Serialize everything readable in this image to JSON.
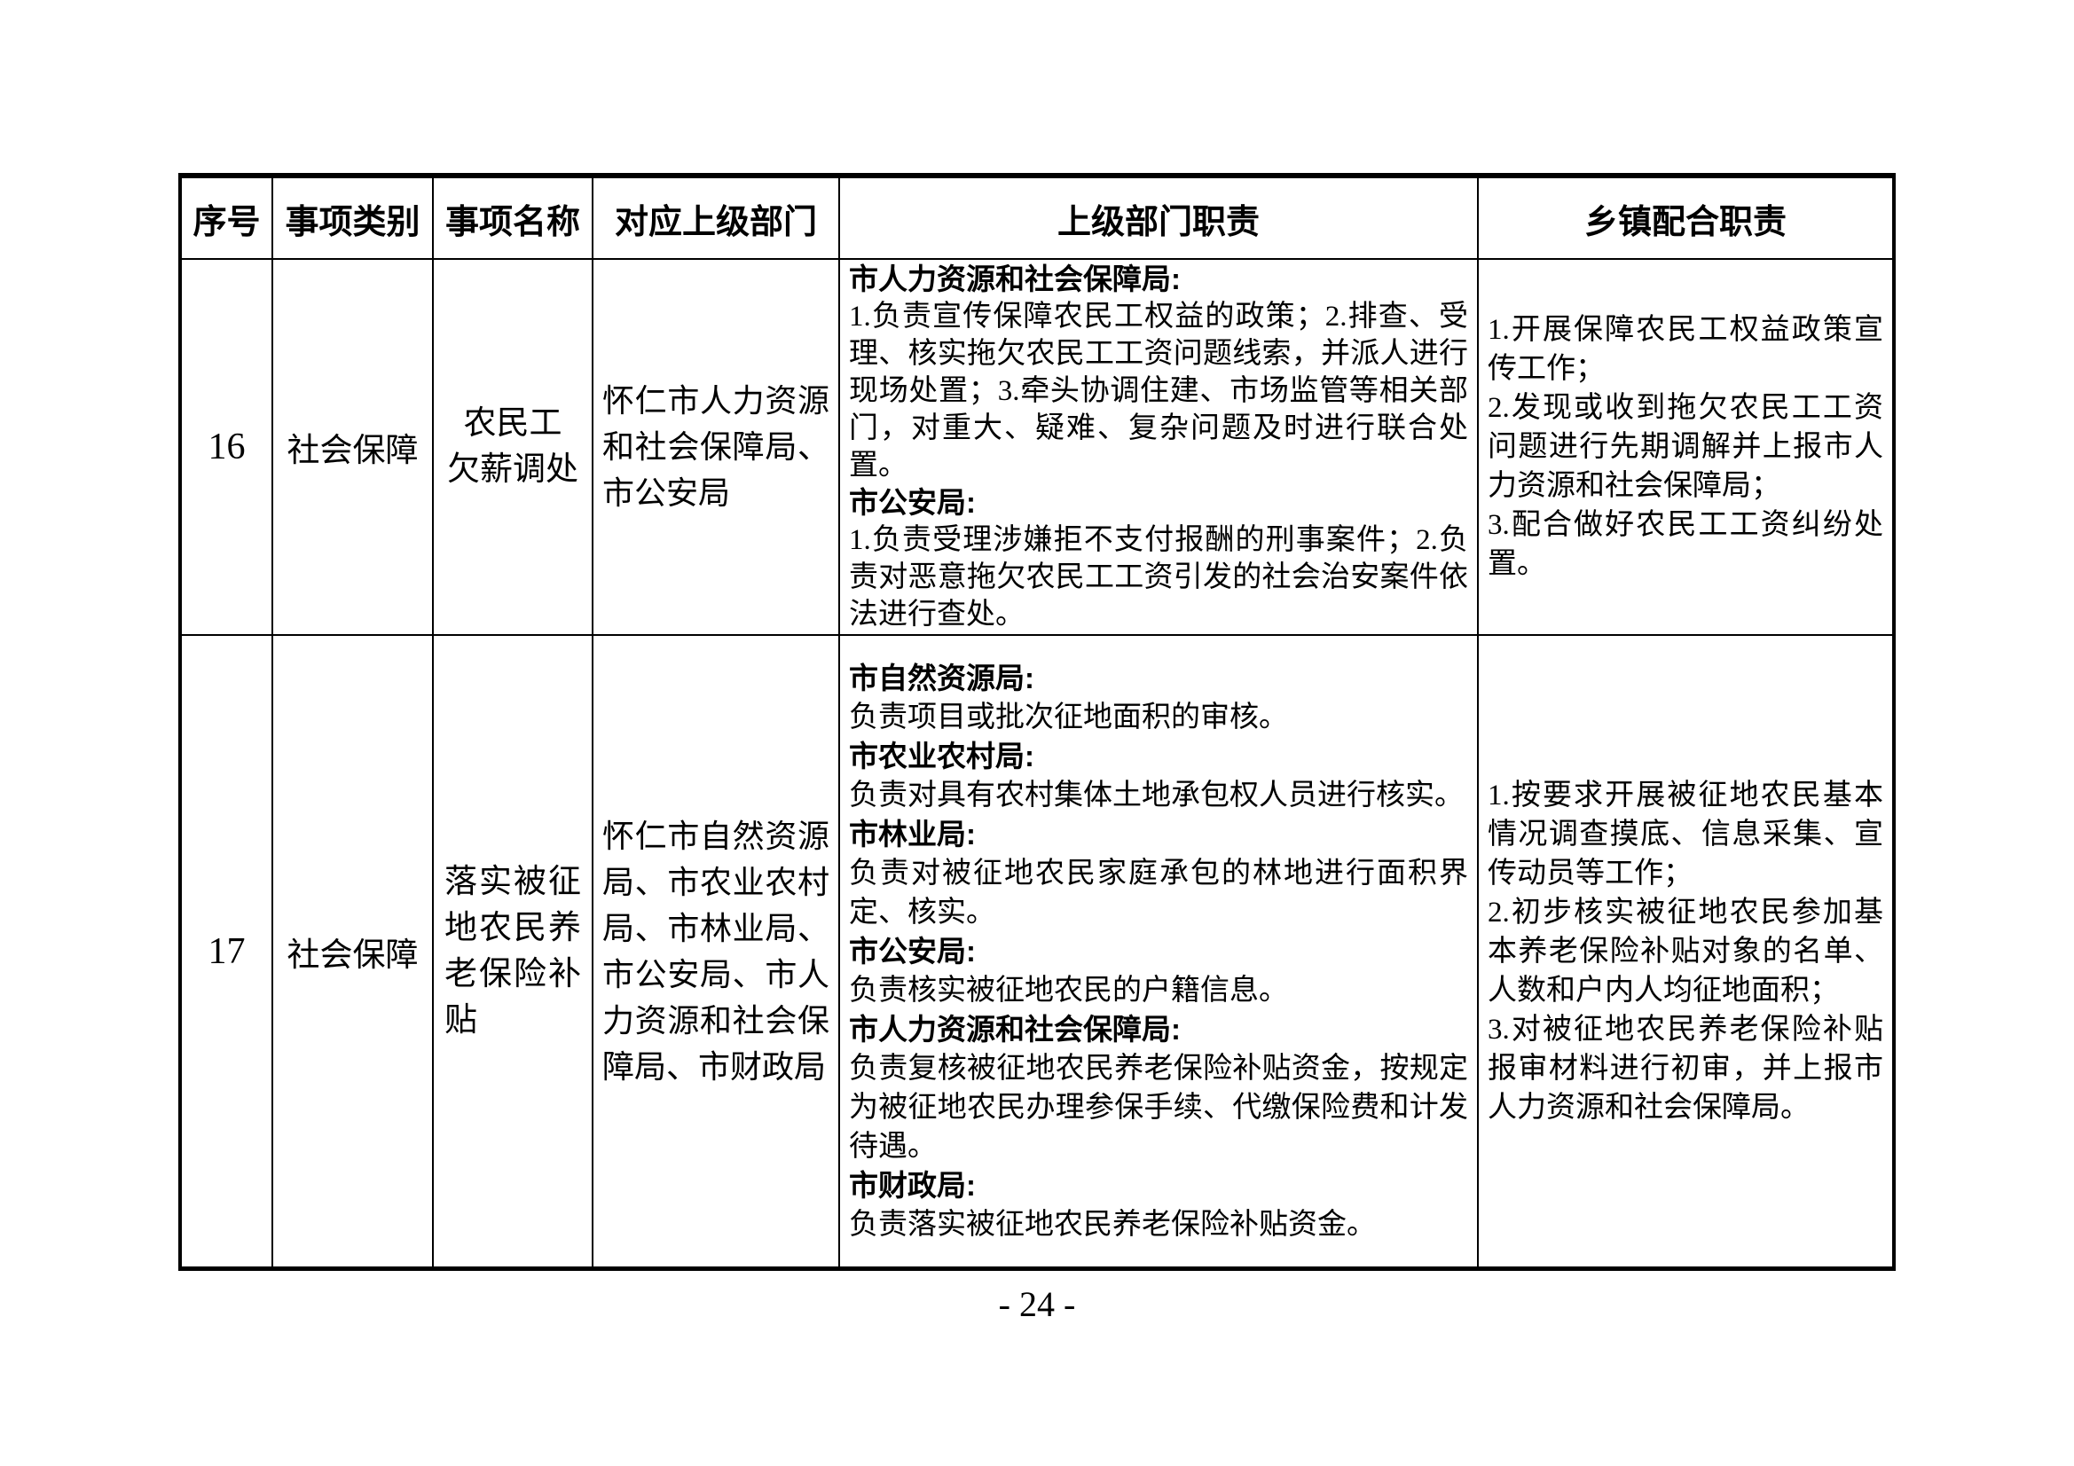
{
  "page": {
    "number_label": "- 24 -"
  },
  "table": {
    "headers": [
      "序号",
      "事项类别",
      "事项名称",
      "对应上级部门",
      "上级部门职责",
      "乡镇配合职责"
    ],
    "rows": [
      {
        "seq": "16",
        "category": "社会保障",
        "name_lines": [
          "农民工",
          "欠薪调处"
        ],
        "superior_depts": "怀仁市人力资源和社会保障局、市公安局",
        "superior_duties": [
          {
            "dept": "市人力资源和社会保障局:",
            "desc": "1.负责宣传保障农民工权益的政策；2.排查、受理、核实拖欠农民工工资问题线索，并派人进行现场处置；3.牵头协调住建、市场监管等相关部门，对重大、疑难、复杂问题及时进行联合处置。"
          },
          {
            "dept": "市公安局:",
            "desc": "1.负责受理涉嫌拒不支付报酬的刑事案件；2.负责对恶意拖欠农民工工资引发的社会治安案件依法进行查处。"
          }
        ],
        "township_duties": [
          "1.开展保障农民工权益政策宣传工作；",
          "2.发现或收到拖欠农民工工资问题进行先期调解并上报市人力资源和社会保障局；",
          "3.配合做好农民工工资纠纷处置。"
        ]
      },
      {
        "seq": "17",
        "category": "社会保障",
        "name": "落实被征地农民养老保险补贴",
        "superior_depts": "怀仁市自然资源局、市农业农村局、市林业局、市公安局、市人力资源和社会保障局、市财政局",
        "superior_duties": [
          {
            "dept": "市自然资源局:",
            "desc": "负责项目或批次征地面积的审核。"
          },
          {
            "dept": "市农业农村局:",
            "desc": "负责对具有农村集体土地承包权人员进行核实。"
          },
          {
            "dept": "市林业局:",
            "desc": "负责对被征地农民家庭承包的林地进行面积界定、核实。"
          },
          {
            "dept": "市公安局:",
            "desc": "负责核实被征地农民的户籍信息。"
          },
          {
            "dept": "市人力资源和社会保障局:",
            "desc": "负责复核被征地农民养老保险补贴资金，按规定为被征地农民办理参保手续、代缴保险费和计发待遇。"
          },
          {
            "dept": "市财政局:",
            "desc": "负责落实被征地农民养老保险补贴资金。"
          }
        ],
        "township_duties": [
          "1.按要求开展被征地农民基本情况调查摸底、信息采集、宣传动员等工作；",
          "2.初步核实被征地农民参加基本养老保险补贴对象的名单、人数和户内人均征地面积；",
          "3.对被征地农民养老保险补贴报审材料进行初审，并上报市人力资源和社会保障局。"
        ]
      }
    ]
  }
}
